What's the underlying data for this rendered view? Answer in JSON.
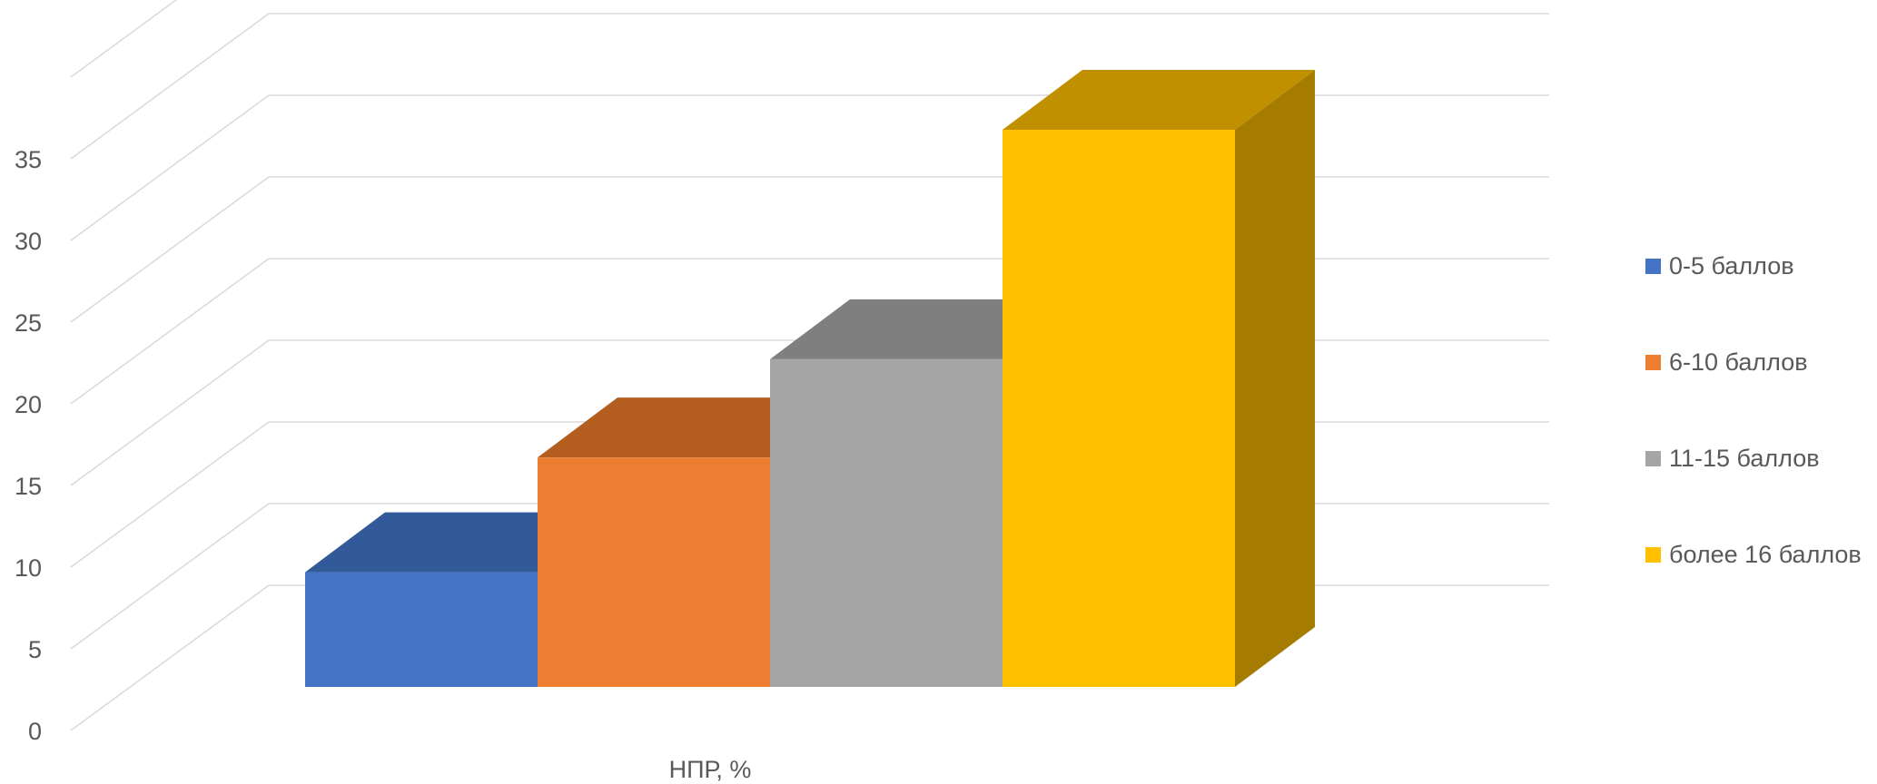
{
  "chart_data": {
    "type": "bar",
    "style": "3d-column",
    "title": "",
    "xlabel": "",
    "ylabel": "",
    "categories": [
      "НПР, %"
    ],
    "series": [
      {
        "name": "0-5 баллов",
        "values": [
          7
        ],
        "color": "#4472C4",
        "top_color": "#335A98",
        "side_color": "#2F5290"
      },
      {
        "name": "6-10 баллов",
        "values": [
          14
        ],
        "color": "#ED7D31",
        "top_color": "#B55E22",
        "side_color": "#A85620"
      },
      {
        "name": "11-15 баллов",
        "values": [
          20
        ],
        "color": "#A5A5A5",
        "top_color": "#7F7F7F",
        "side_color": "#737373"
      },
      {
        "name": "более 16 баллов",
        "values": [
          34
        ],
        "color": "#FFC000",
        "top_color": "#C09000",
        "side_color": "#A67C00"
      }
    ],
    "ylim": [
      0,
      40
    ],
    "yticks": [
      "0",
      "5",
      "10",
      "15",
      "20",
      "25",
      "30",
      "35"
    ],
    "grid": true,
    "legend_position": "right"
  }
}
